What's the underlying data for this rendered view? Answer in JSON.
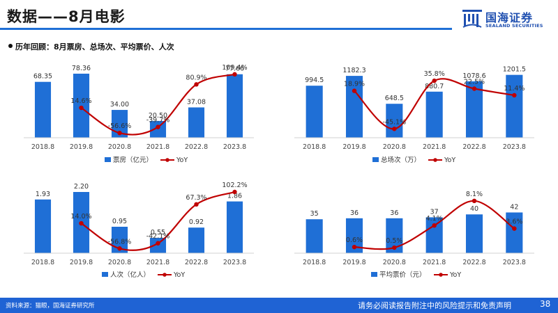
{
  "page": {
    "title": "数据——8月电影",
    "subtitle": "历年回顾：8月票房、总场次、平均票价、人次",
    "logo_cn": "国海证券",
    "logo_en": "SEALAND SECURITIES",
    "footer_source": "资料来源：猫眼，国海证券研究所",
    "footer_disclaimer": "请务必阅读报告附注中的风险提示和免责声明",
    "page_number": "38"
  },
  "colors": {
    "bar": "#1f6fd6",
    "line": "#c00000",
    "accent": "#1f63d4"
  },
  "chart_data": [
    {
      "type": "bar",
      "categories": [
        "2018.8",
        "2019.8",
        "2020.8",
        "2021.8",
        "2022.8",
        "2023.8"
      ],
      "series": [
        {
          "name": "票房（亿元）",
          "kind": "bar",
          "values": [
            68.35,
            78.36,
            34.0,
            20.5,
            37.08,
            77.66
          ],
          "labels": [
            "68.35",
            "78.36",
            "34.00",
            "20.50",
            "37.08",
            "77.66"
          ]
        },
        {
          "name": "YoY",
          "kind": "line",
          "values": [
            null,
            14.6,
            -56.6,
            -39.7,
            80.9,
            109.4
          ],
          "labels": [
            "",
            "14.6%",
            "-56.6%",
            "-39.7%",
            "80.9%",
            "109.4%"
          ]
        }
      ]
    },
    {
      "type": "bar",
      "categories": [
        "2018.8",
        "2019.8",
        "2020.8",
        "2021.8",
        "2022.8",
        "2023.8"
      ],
      "series": [
        {
          "name": "总场次（万）",
          "kind": "bar",
          "values": [
            994.5,
            1182.3,
            648.5,
            880.7,
            1078.6,
            1201.5
          ],
          "labels": [
            "994.5",
            "1182.3",
            "648.5",
            "880.7",
            "1078.6",
            "1201.5"
          ]
        },
        {
          "name": "YoY",
          "kind": "line",
          "values": [
            null,
            18.9,
            -45.1,
            35.8,
            22.5,
            11.4
          ],
          "labels": [
            "",
            "18.9%",
            "-45.1%",
            "35.8%",
            "22.5%",
            "11.4%"
          ]
        }
      ]
    },
    {
      "type": "bar",
      "categories": [
        "2018.8",
        "2019.8",
        "2020.8",
        "2021.8",
        "2022.8",
        "2023.8"
      ],
      "series": [
        {
          "name": "人次（亿人）",
          "kind": "bar",
          "values": [
            1.93,
            2.2,
            0.95,
            0.55,
            0.92,
            1.86
          ],
          "labels": [
            "1.93",
            "2.20",
            "0.95",
            "0.55",
            "0.92",
            "1.86"
          ]
        },
        {
          "name": "YoY",
          "kind": "line",
          "values": [
            null,
            14.0,
            -56.8,
            -42.1,
            67.3,
            102.2
          ],
          "labels": [
            "",
            "14.0%",
            "-56.8%",
            "-42.1%",
            "67.3%",
            "102.2%"
          ]
        }
      ]
    },
    {
      "type": "bar",
      "categories": [
        "2018.8",
        "2019.8",
        "2020.8",
        "2021.8",
        "2022.8",
        "2023.8"
      ],
      "series": [
        {
          "name": "平均票价（元）",
          "kind": "bar",
          "values": [
            35,
            36,
            36,
            37,
            40,
            42
          ],
          "labels": [
            "35",
            "36",
            "36",
            "37",
            "40",
            "42"
          ]
        },
        {
          "name": "YoY",
          "kind": "line",
          "values": [
            null,
            0.6,
            0.5,
            4.1,
            8.1,
            3.6
          ],
          "labels": [
            "",
            "0.6%",
            "0.5%",
            "4.1%",
            "8.1%",
            "3.6%"
          ]
        }
      ]
    }
  ]
}
